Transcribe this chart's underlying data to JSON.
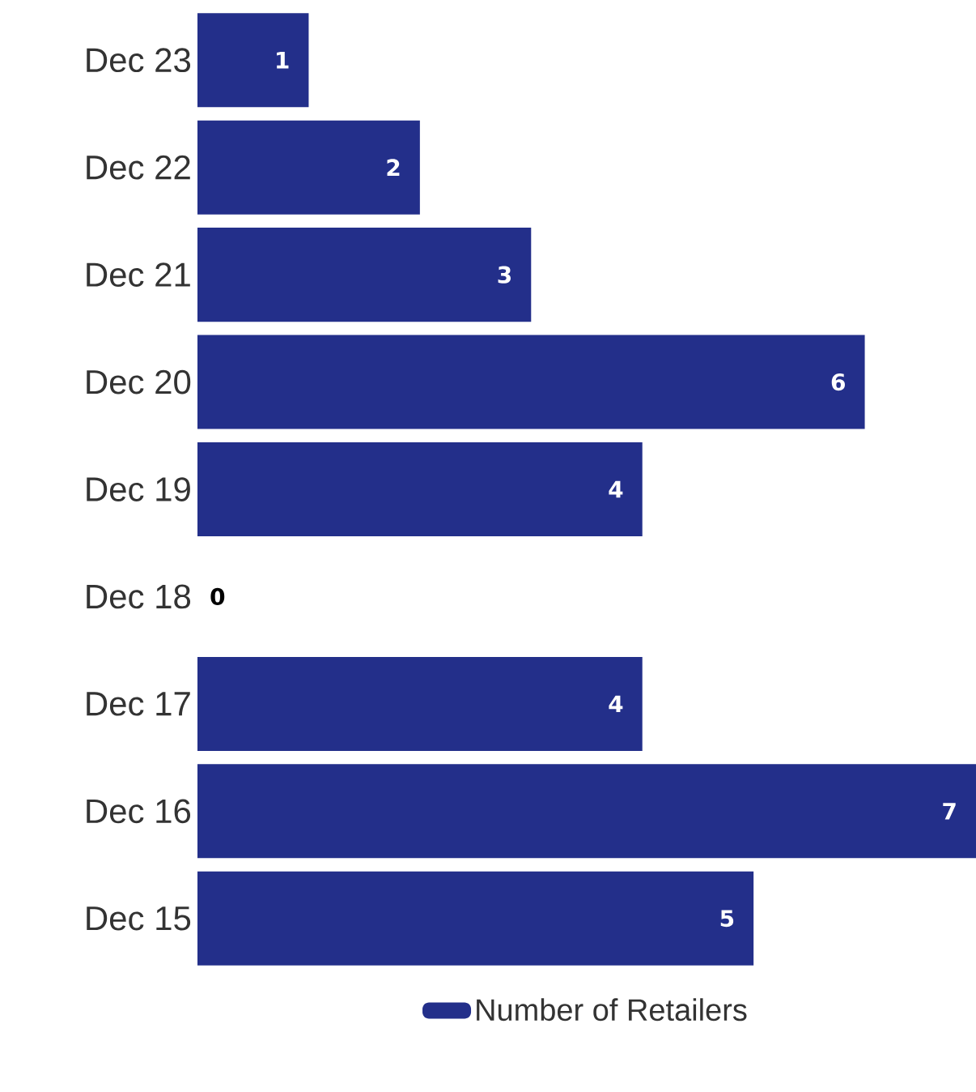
{
  "chart_data": {
    "type": "bar",
    "orientation": "horizontal",
    "categories": [
      "Dec 23",
      "Dec 22",
      "Dec 21",
      "Dec 20",
      "Dec 19",
      "Dec 18",
      "Dec 17",
      "Dec 16",
      "Dec 15"
    ],
    "series": [
      {
        "name": "Number of Retailers",
        "color": "#232f8a",
        "values": [
          1,
          2,
          3,
          6,
          4,
          0,
          4,
          7,
          5
        ]
      }
    ],
    "data_labels": true,
    "legend": "bottom"
  }
}
